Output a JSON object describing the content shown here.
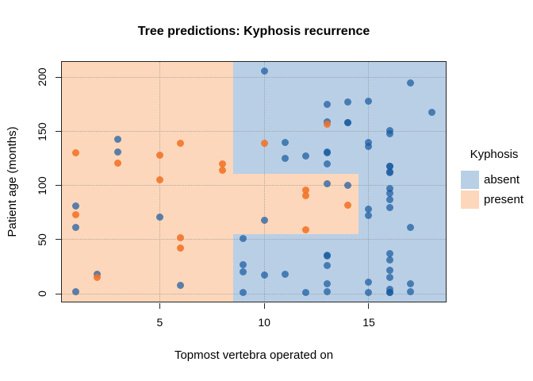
{
  "legend": {
    "title": "Kyphosis",
    "items": [
      {
        "label": "absent",
        "color": "#b9cfe6"
      },
      {
        "label": "present",
        "color": "#fcd7bb"
      }
    ]
  },
  "colors": {
    "region_absent": "#b9cfe6",
    "region_present": "#fcd7bb",
    "point_absent": "rgba(22,88,158,0.70)",
    "point_present": "rgba(243,114,38,0.88)",
    "gridline": "#8a8a8a",
    "frame": "#262626"
  },
  "chart_data": {
    "type": "scatter",
    "title": "Tree predictions: Kyphosis recurrence",
    "xlabel": "Topmost vertebra operated on",
    "ylabel": "Patient age (months)",
    "x_range": [
      0.32,
      18.68
    ],
    "y_range": [
      -7.2,
      214.2
    ],
    "x_ticks": [
      5,
      10,
      15
    ],
    "y_ticks": [
      0,
      50,
      100,
      150,
      200
    ],
    "grid": "dotted",
    "legend_position": "right",
    "background_class": "absent",
    "decision_regions": [
      {
        "class": "present",
        "x": [
          0.32,
          8.5
        ],
        "y": [
          -7.2,
          214.2
        ]
      },
      {
        "class": "present",
        "x": [
          8.5,
          14.5
        ],
        "y": [
          55,
          111
        ]
      }
    ],
    "series": [
      {
        "name": "absent",
        "points": [
          [
            5,
            71
          ],
          [
            14,
            158
          ],
          [
            1,
            2
          ],
          [
            15,
            1
          ],
          [
            16,
            1
          ],
          [
            17,
            61
          ],
          [
            16,
            37
          ],
          [
            16,
            113
          ],
          [
            16,
            148
          ],
          [
            2,
            18
          ],
          [
            12,
            1
          ],
          [
            18,
            168
          ],
          [
            16,
            1
          ],
          [
            15,
            78
          ],
          [
            13,
            175
          ],
          [
            16,
            80
          ],
          [
            9,
            27
          ],
          [
            16,
            22
          ],
          [
            3,
            131
          ],
          [
            13,
            9
          ],
          [
            6,
            8
          ],
          [
            14,
            100
          ],
          [
            16,
            4
          ],
          [
            16,
            151
          ],
          [
            16,
            31
          ],
          [
            11,
            125
          ],
          [
            13,
            130
          ],
          [
            16,
            112
          ],
          [
            11,
            140
          ],
          [
            16,
            93
          ],
          [
            9,
            1
          ],
          [
            9,
            20
          ],
          [
            13,
            35
          ],
          [
            3,
            143
          ],
          [
            1,
            61
          ],
          [
            16,
            97
          ],
          [
            15,
            136
          ],
          [
            13,
            131
          ],
          [
            14,
            177
          ],
          [
            10,
            68
          ],
          [
            17,
            9
          ],
          [
            17,
            2
          ],
          [
            15,
            140
          ],
          [
            15,
            72
          ],
          [
            13,
            2
          ],
          [
            9,
            51
          ],
          [
            13,
            102
          ],
          [
            1,
            81
          ],
          [
            16,
            118
          ],
          [
            16,
            118
          ],
          [
            10,
            17
          ],
          [
            17,
            195
          ],
          [
            13,
            159
          ],
          [
            11,
            18
          ],
          [
            16,
            15
          ],
          [
            14,
            158
          ],
          [
            12,
            127
          ],
          [
            16,
            87
          ],
          [
            10,
            206
          ],
          [
            15,
            11
          ],
          [
            15,
            178
          ],
          [
            13,
            26
          ],
          [
            13,
            120
          ],
          [
            13,
            36
          ]
        ]
      },
      {
        "name": "present",
        "points": [
          [
            5,
            128
          ],
          [
            12,
            59
          ],
          [
            14,
            82
          ],
          [
            2,
            15
          ],
          [
            5,
            105
          ],
          [
            12,
            96
          ],
          [
            6,
            52
          ],
          [
            12,
            91
          ],
          [
            1,
            73
          ],
          [
            10,
            139
          ],
          [
            3,
            121
          ],
          [
            6,
            139
          ],
          [
            8,
            120
          ],
          [
            1,
            130
          ],
          [
            8,
            114
          ],
          [
            13,
            157
          ],
          [
            6,
            42
          ]
        ]
      }
    ]
  }
}
